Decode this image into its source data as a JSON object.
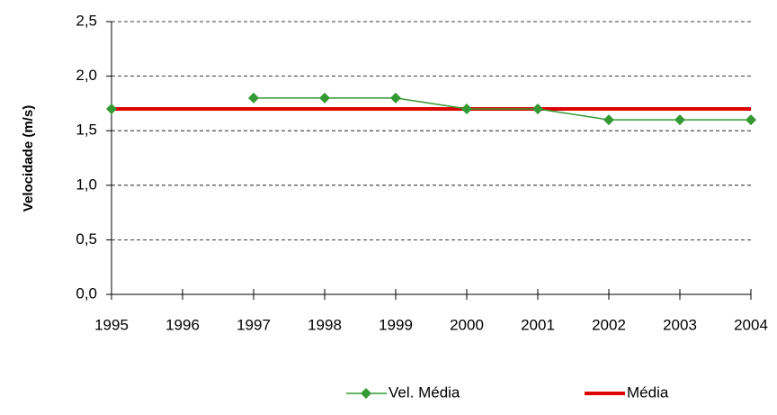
{
  "chart_data": {
    "type": "line",
    "y_label": "Velocidade (m/s)",
    "categories": [
      "1995",
      "1996",
      "1997",
      "1998",
      "1999",
      "2000",
      "2001",
      "2002",
      "2003",
      "2004"
    ],
    "series": [
      {
        "name": "Vel. Média",
        "color": "#339933",
        "marker": "diamond",
        "values": [
          1.7,
          null,
          1.8,
          1.8,
          1.8,
          1.7,
          1.7,
          1.6,
          1.6,
          1.6
        ]
      },
      {
        "name": "Média",
        "color": "#dd0000",
        "marker": "none",
        "values": [
          1.7,
          1.7,
          1.7,
          1.7,
          1.7,
          1.7,
          1.7,
          1.7,
          1.7,
          1.7
        ]
      }
    ],
    "ylim": [
      0,
      2.5
    ],
    "yticks": [
      {
        "value": 0,
        "label": "0,0"
      },
      {
        "value": 0.5,
        "label": "0,5"
      },
      {
        "value": 1,
        "label": "1,0"
      },
      {
        "value": 1.5,
        "label": "1,5"
      },
      {
        "value": 2,
        "label": "2,0"
      },
      {
        "value": 2.5,
        "label": "2,5"
      }
    ],
    "grid": true,
    "legend": "bottom"
  }
}
